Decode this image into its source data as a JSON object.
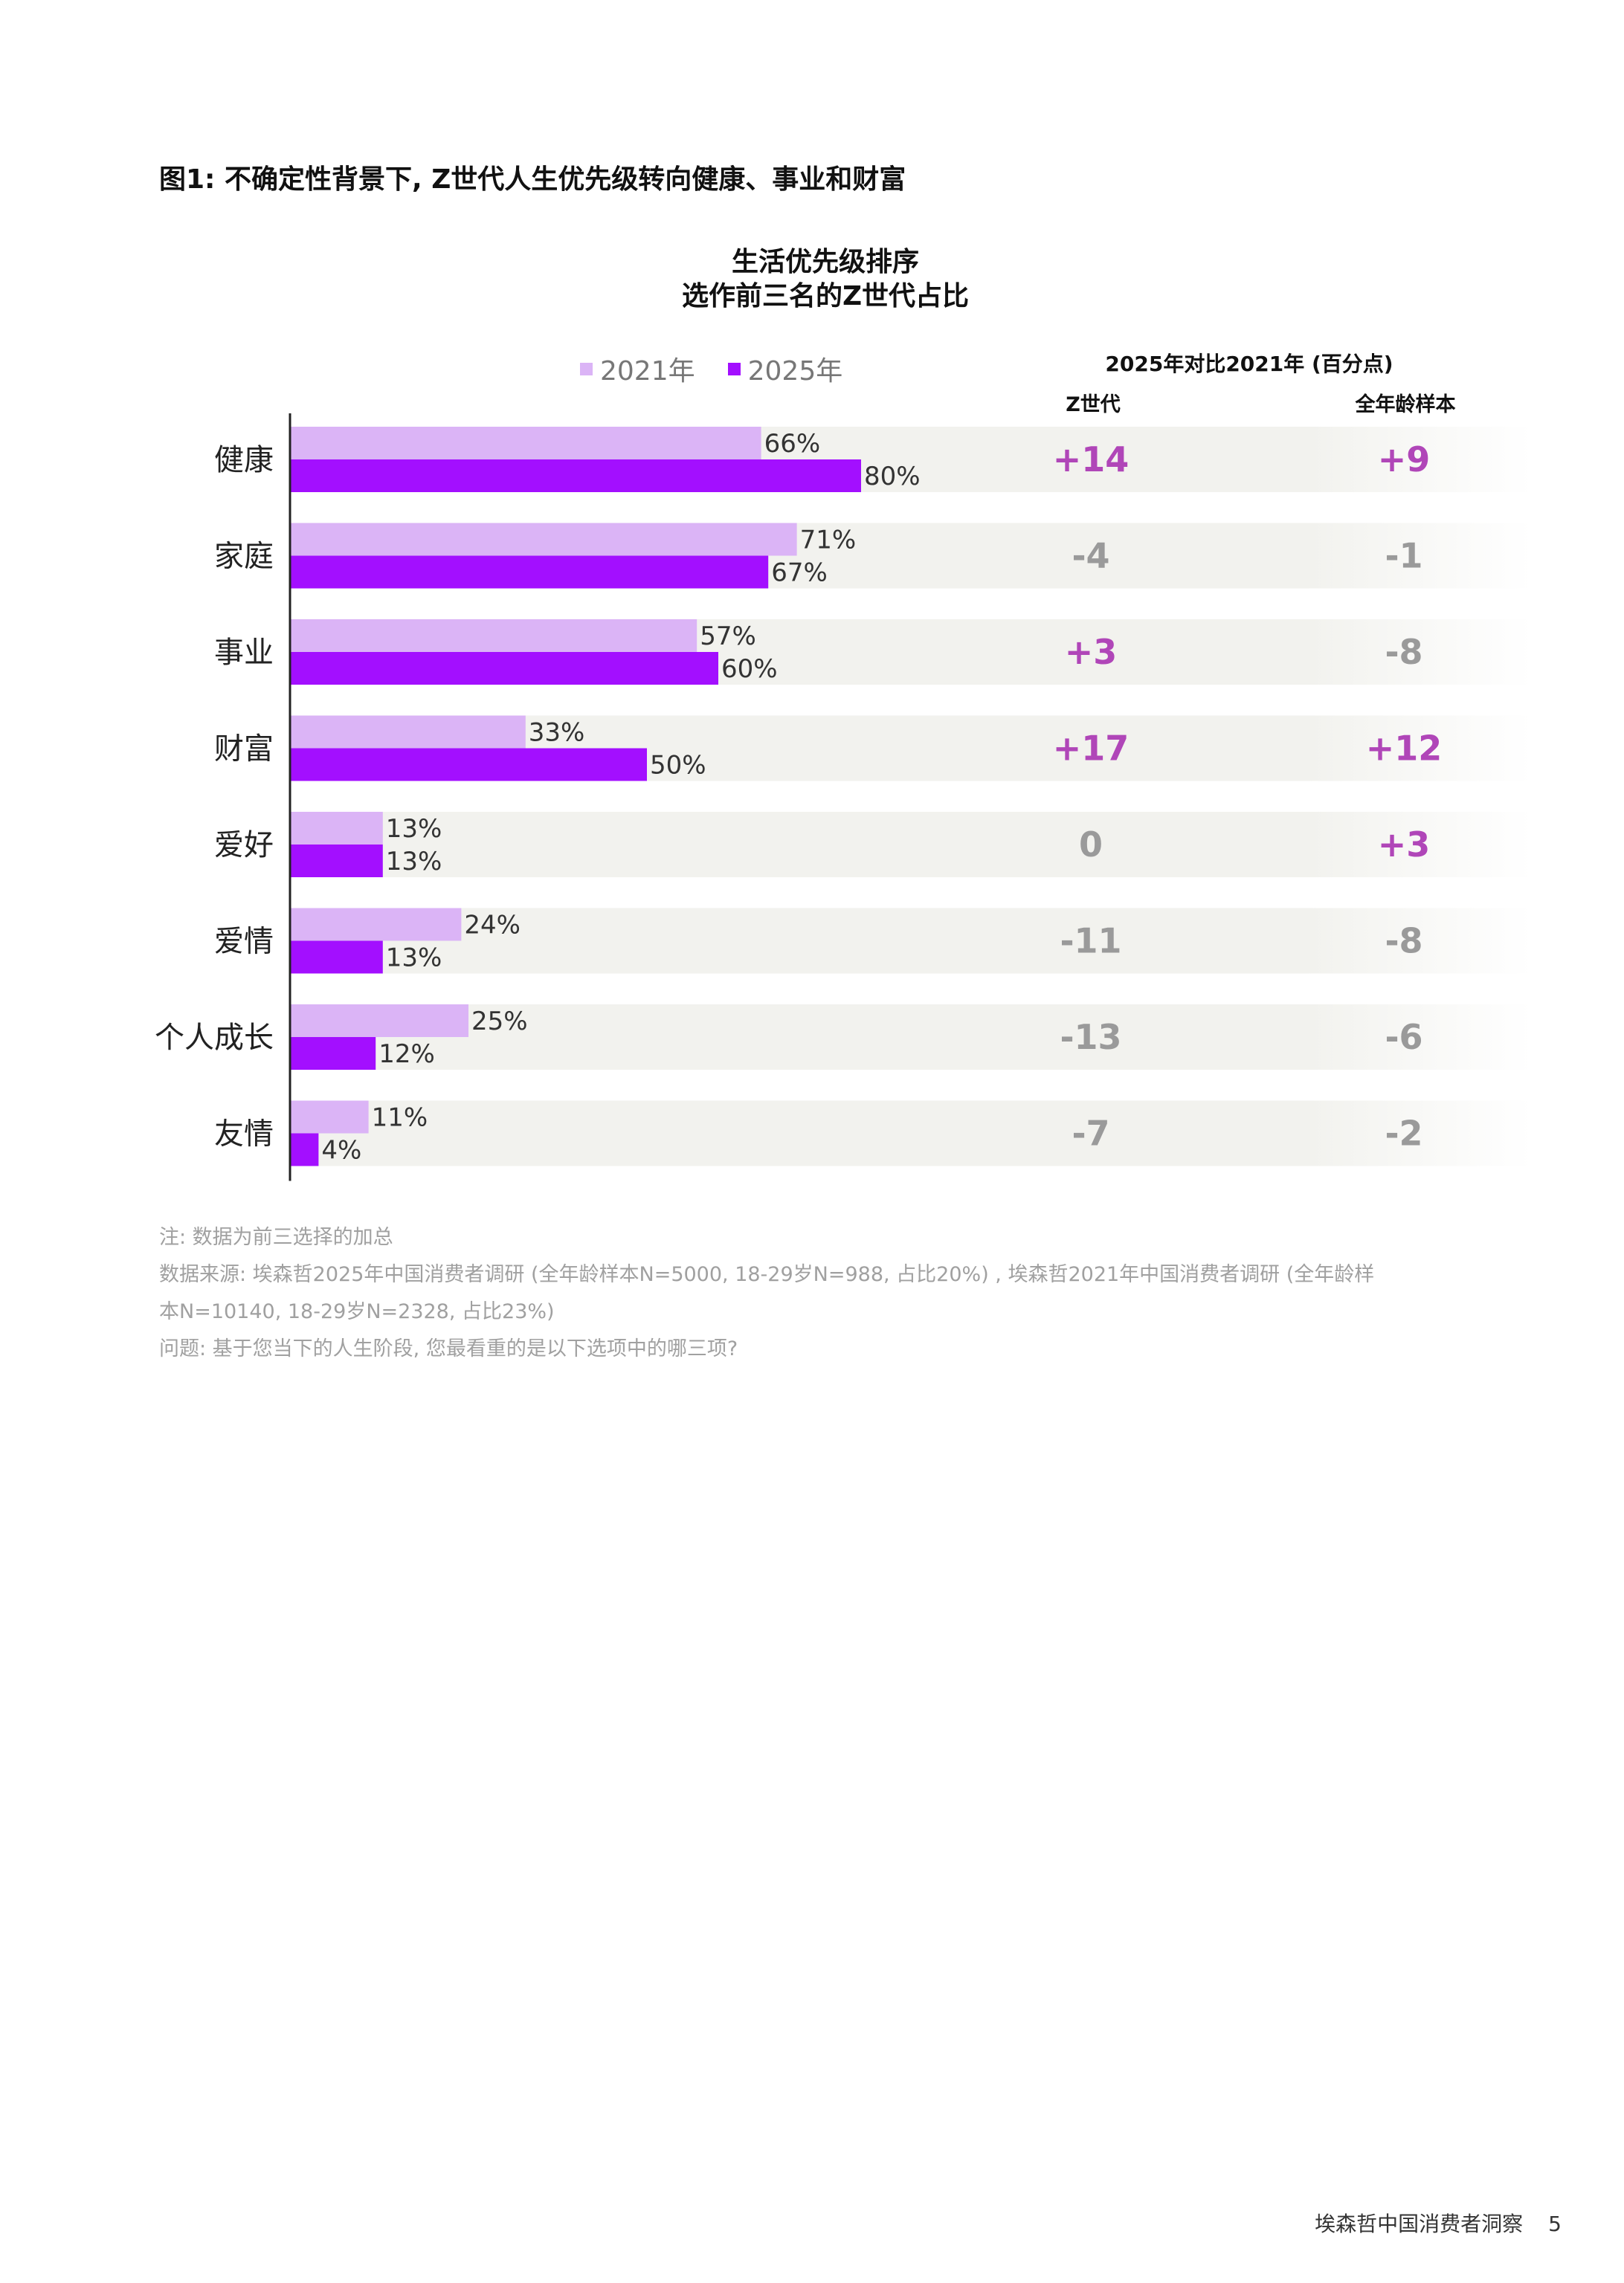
{
  "figure_title": "图1: 不确定性背景下, Z世代人生优先级转向健康、事业和财富",
  "comparison": {
    "title": "2025年对比2021年 (百分点)",
    "col_genz": "Z世代",
    "col_all": "全年龄样本"
  },
  "colors": {
    "s2021": "#dbb4f6",
    "s2025": "#a30fff",
    "positive": "#b046b8",
    "nonpositive": "#9a9a9a",
    "row_band": "#f2f2ee"
  },
  "chart_data": {
    "type": "bar",
    "orientation": "horizontal",
    "title": "生活优先级排序",
    "subtitle": "选作前三名的Z世代占比",
    "categories": [
      "健康",
      "家庭",
      "事业",
      "财富",
      "爱好",
      "爱情",
      "个人成长",
      "友情"
    ],
    "series": [
      {
        "name": "2021年",
        "values": [
          66,
          71,
          57,
          33,
          13,
          24,
          25,
          11
        ]
      },
      {
        "name": "2025年",
        "values": [
          80,
          67,
          60,
          50,
          13,
          13,
          12,
          4
        ]
      }
    ],
    "value_suffix": "%",
    "xlim": [
      0,
      100
    ],
    "legend_position": "top",
    "grid": false,
    "change_genz": [
      "+14",
      "-4",
      "+3",
      "+17",
      "0",
      "-11",
      "-13",
      "-7"
    ],
    "change_all": [
      "+9",
      "-1",
      "-8",
      "+12",
      "+3",
      "-8",
      "-6",
      "-2"
    ]
  },
  "notes": [
    "注: 数据为前三选择的加总",
    "数据来源: 埃森哲2025年中国消费者调研 (全年龄样本N=5000, 18-29岁N=988, 占比20%) , 埃森哲2021年中国消费者调研 (全年龄样",
    "本N=10140, 18-29岁N=2328, 占比23%)",
    "问题: 基于您当下的人生阶段, 您最看重的是以下选项中的哪三项?"
  ],
  "footer": {
    "publication": "埃森哲中国消费者洞察",
    "page_number": "5"
  }
}
